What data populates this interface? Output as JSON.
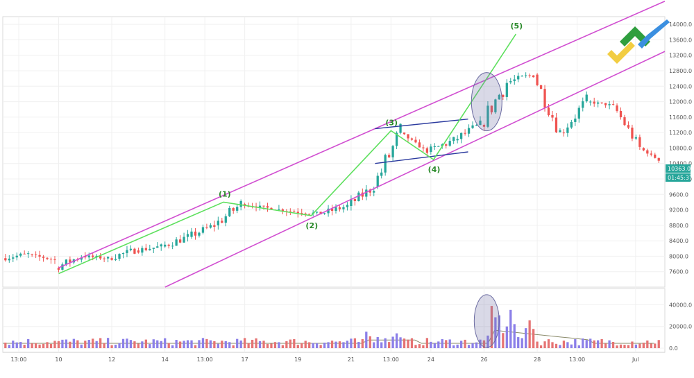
{
  "chart_data": {
    "type": "candlestick",
    "price_axis": {
      "ticks": [
        7600,
        8000,
        8400,
        8800,
        9200,
        9600,
        10000,
        10400,
        10800,
        11200,
        11600,
        12000,
        12400,
        12800,
        13200,
        13600,
        14000
      ],
      "decimals": 1,
      "ylim": [
        7200,
        14200
      ]
    },
    "volume_axis": {
      "tick_labels": [
        "40000.0",
        "20000.0",
        "0.0"
      ],
      "ticks": [
        40000,
        20000,
        0
      ],
      "ylim": [
        0,
        55000
      ]
    },
    "x_tick_labels": [
      "13:00",
      "10",
      "12",
      "14",
      "13:00",
      "17",
      "19",
      "21",
      "13:00",
      "24",
      "26",
      "28",
      "13:00",
      "Jul"
    ],
    "x_ticks_days": [
      8.5,
      10,
      12,
      14,
      15.5,
      17,
      19,
      21,
      22.5,
      24,
      26,
      28,
      29.5,
      31.7
    ],
    "x_range_days": [
      7.9,
      32.8
    ],
    "last_price": "10363.0",
    "countdown": "01:45:37",
    "wave_labels": [
      "(1)",
      "(2)",
      "(3)",
      "(4)",
      "(5)"
    ],
    "wave_points": [
      {
        "label": "(1)",
        "day": 16.2,
        "price": 9400
      },
      {
        "label": "(2)",
        "day": 19.5,
        "price": 9050
      },
      {
        "label": "(3)",
        "day": 22.5,
        "price": 11250
      },
      {
        "label": "(4)",
        "day": 24.1,
        "price": 10500
      },
      {
        "label": "(5)",
        "day": 27.2,
        "price": 13750
      }
    ],
    "wave_start": {
      "day": 10.0,
      "price": 7550
    },
    "channel_upper": [
      {
        "day": 10.0,
        "price": 7700
      },
      {
        "day": 32.8,
        "price": 14600
      }
    ],
    "channel_lower": [
      {
        "day": 14.0,
        "price": 7200
      },
      {
        "day": 32.8,
        "price": 13300
      }
    ],
    "triangle_upper": [
      {
        "day": 21.9,
        "price": 11300
      },
      {
        "day": 25.4,
        "price": 11550
      }
    ],
    "triangle_lower": [
      {
        "day": 21.9,
        "price": 10400
      },
      {
        "day": 25.4,
        "price": 10700
      }
    ],
    "highlight_price": {
      "day": 26.1,
      "price": 12000
    },
    "highlight_volume": {
      "day": 26.1,
      "volume": 25000
    },
    "colors": {
      "up": "#26a69a",
      "down": "#ef5350",
      "channel": "#d14fd1",
      "wave": "#5ee05e",
      "triangle": "#2b3a9e",
      "volume_up": "#8b7fe8",
      "volume_down": "#e57373",
      "volume_ma": "#8a8a6a",
      "last_tag": "#26a69a",
      "grid": "#f0f0f0"
    },
    "ohlc_daily_approx": [
      {
        "day": 8,
        "open": 7950,
        "close": 8050
      },
      {
        "day": 9,
        "open": 8050,
        "close": 7900
      },
      {
        "day": 10,
        "open": 7700,
        "close": 8000
      },
      {
        "day": 11,
        "open": 8000,
        "close": 7950
      },
      {
        "day": 12,
        "open": 7950,
        "close": 8150
      },
      {
        "day": 13,
        "open": 8150,
        "close": 8250
      },
      {
        "day": 14,
        "open": 8250,
        "close": 8500
      },
      {
        "day": 15,
        "open": 8500,
        "close": 8800
      },
      {
        "day": 16,
        "open": 8800,
        "close": 9350
      },
      {
        "day": 17,
        "open": 9350,
        "close": 9250
      },
      {
        "day": 18,
        "open": 9250,
        "close": 9150
      },
      {
        "day": 19,
        "open": 9150,
        "close": 9100
      },
      {
        "day": 20,
        "open": 9100,
        "close": 9300
      },
      {
        "day": 21,
        "open": 9300,
        "close": 9800
      },
      {
        "day": 22,
        "open": 9800,
        "close": 11200
      },
      {
        "day": 23,
        "open": 11200,
        "close": 10700
      },
      {
        "day": 24,
        "open": 10700,
        "close": 11000
      },
      {
        "day": 25,
        "open": 11000,
        "close": 11400
      },
      {
        "day": 26,
        "open": 11400,
        "close": 12500
      },
      {
        "day": 27,
        "open": 12500,
        "close": 12700
      },
      {
        "day": 28,
        "open": 12700,
        "close": 11200
      },
      {
        "day": 29,
        "open": 11200,
        "close": 12000
      },
      {
        "day": 30,
        "open": 12000,
        "close": 11900
      },
      {
        "day": 31,
        "open": 11900,
        "close": 10800
      },
      {
        "day": 32,
        "open": 10800,
        "close": 10363
      }
    ]
  }
}
